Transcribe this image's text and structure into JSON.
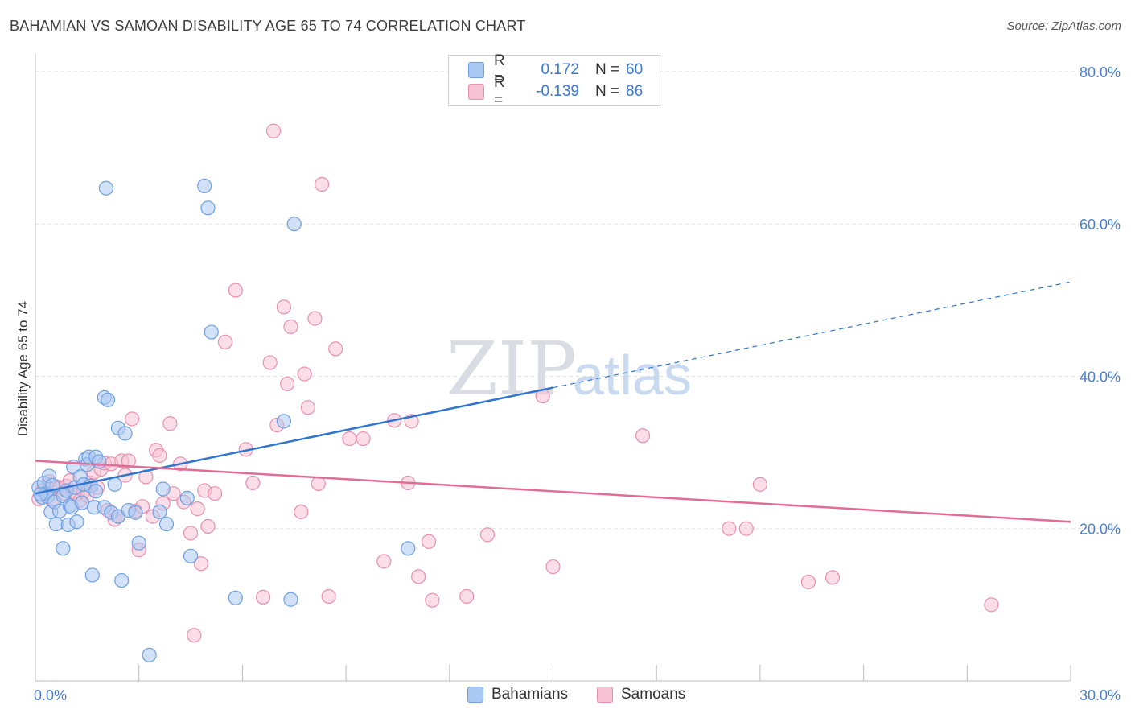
{
  "header": {
    "title": "BAHAMIAN VS SAMOAN DISABILITY AGE 65 TO 74 CORRELATION CHART",
    "source": "Source: ZipAtlas.com"
  },
  "legend": {
    "rows": [
      {
        "r_label": "R =",
        "r_value": "0.172",
        "n_label": "N =",
        "n_value": "60",
        "color": "#a9c8f2",
        "border": "#6f9fdf"
      },
      {
        "r_label": "R =",
        "r_value": "-0.139",
        "n_label": "N =",
        "n_value": "86",
        "color": "#f7c3d4",
        "border": "#e98fae"
      }
    ]
  },
  "bottom_legend": {
    "items": [
      {
        "label": "Bahamians",
        "color": "#a9c8f2",
        "border": "#6f9fdf"
      },
      {
        "label": "Samoans",
        "color": "#f7c3d4",
        "border": "#e98fae"
      }
    ]
  },
  "watermark": {
    "part1": "ZIP",
    "part2": "atlas"
  },
  "chart_data": {
    "type": "scatter",
    "title": "BAHAMIAN VS SAMOAN DISABILITY AGE 65 TO 74 CORRELATION CHART",
    "ylabel": "Disability Age 65 to 74",
    "xlabel": "",
    "xlim": [
      0,
      30
    ],
    "ylim": [
      0,
      82
    ],
    "x_ticks": [
      {
        "value": 0,
        "label": "0.0%"
      },
      {
        "value": 30,
        "label": "30.0%"
      }
    ],
    "y_ticks": [
      {
        "value": 20,
        "label": "20.0%"
      },
      {
        "value": 40,
        "label": "40.0%"
      },
      {
        "value": 60,
        "label": "60.0%"
      },
      {
        "value": 80,
        "label": "80.0%"
      }
    ],
    "grid": true,
    "colors": {
      "bahamians_fill": "#a9c8f2",
      "bahamians_stroke": "#6f9fdf",
      "samoans_fill": "#f7c3d4",
      "samoans_stroke": "#e98fae",
      "blue_line": "#2f74d0",
      "pink_line": "#e26c96"
    },
    "series": [
      {
        "name": "Bahamians",
        "points": [
          [
            0.1,
            25.4
          ],
          [
            0.2,
            24.1
          ],
          [
            0.25,
            26.0
          ],
          [
            0.3,
            24.6
          ],
          [
            0.35,
            24.2
          ],
          [
            0.4,
            26.9
          ],
          [
            0.45,
            22.2
          ],
          [
            0.5,
            25.7
          ],
          [
            0.55,
            23.5
          ],
          [
            0.6,
            20.6
          ],
          [
            0.7,
            22.3
          ],
          [
            0.8,
            24.3
          ],
          [
            0.8,
            17.4
          ],
          [
            0.9,
            25.0
          ],
          [
            0.95,
            20.5
          ],
          [
            1.0,
            23.0
          ],
          [
            1.05,
            22.8
          ],
          [
            1.1,
            28.1
          ],
          [
            1.15,
            25.4
          ],
          [
            1.2,
            20.9
          ],
          [
            1.3,
            26.8
          ],
          [
            1.35,
            23.4
          ],
          [
            1.4,
            25.8
          ],
          [
            1.45,
            29.1
          ],
          [
            1.5,
            28.4
          ],
          [
            1.55,
            29.4
          ],
          [
            1.6,
            25.6
          ],
          [
            1.7,
            22.8
          ],
          [
            1.65,
            13.9
          ],
          [
            1.75,
            29.4
          ],
          [
            1.75,
            24.9
          ],
          [
            1.85,
            28.8
          ],
          [
            2.0,
            22.8
          ],
          [
            2.05,
            64.7
          ],
          [
            2.0,
            37.2
          ],
          [
            2.1,
            36.9
          ],
          [
            2.2,
            22.1
          ],
          [
            2.3,
            25.8
          ],
          [
            2.4,
            21.6
          ],
          [
            2.4,
            33.2
          ],
          [
            2.5,
            13.2
          ],
          [
            2.6,
            32.5
          ],
          [
            2.7,
            22.4
          ],
          [
            2.9,
            22.1
          ],
          [
            3.0,
            18.1
          ],
          [
            3.3,
            3.4
          ],
          [
            3.6,
            22.2
          ],
          [
            3.7,
            25.2
          ],
          [
            3.8,
            20.6
          ],
          [
            4.4,
            24.0
          ],
          [
            4.5,
            16.4
          ],
          [
            4.9,
            65.0
          ],
          [
            5.0,
            62.1
          ],
          [
            5.1,
            45.8
          ],
          [
            5.8,
            10.9
          ],
          [
            7.2,
            34.1
          ],
          [
            7.4,
            10.7
          ],
          [
            7.5,
            60.0
          ],
          [
            10.8,
            17.4
          ],
          [
            0.15,
            24.5
          ]
        ]
      },
      {
        "name": "Samoans",
        "points": [
          [
            0.1,
            23.9
          ],
          [
            0.2,
            25.0
          ],
          [
            0.3,
            24.5
          ],
          [
            0.4,
            26.2
          ],
          [
            0.5,
            23.7
          ],
          [
            0.6,
            25.5
          ],
          [
            0.7,
            25.4
          ],
          [
            0.8,
            24.6
          ],
          [
            0.9,
            25.6
          ],
          [
            1.0,
            26.3
          ],
          [
            1.1,
            24.8
          ],
          [
            1.2,
            24.5
          ],
          [
            1.3,
            23.7
          ],
          [
            1.4,
            24.9
          ],
          [
            1.5,
            24.3
          ],
          [
            1.6,
            26.0
          ],
          [
            1.7,
            27.4
          ],
          [
            1.8,
            25.4
          ],
          [
            1.9,
            27.8
          ],
          [
            2.0,
            28.6
          ],
          [
            2.1,
            22.4
          ],
          [
            2.2,
            28.5
          ],
          [
            2.3,
            21.2
          ],
          [
            2.4,
            21.6
          ],
          [
            2.5,
            28.9
          ],
          [
            2.6,
            27.0
          ],
          [
            2.7,
            28.9
          ],
          [
            2.8,
            34.4
          ],
          [
            2.9,
            22.3
          ],
          [
            3.0,
            17.2
          ],
          [
            3.1,
            22.9
          ],
          [
            3.2,
            26.8
          ],
          [
            3.4,
            21.6
          ],
          [
            3.5,
            30.3
          ],
          [
            3.6,
            29.6
          ],
          [
            3.7,
            23.3
          ],
          [
            3.9,
            33.8
          ],
          [
            4.0,
            24.6
          ],
          [
            4.2,
            28.5
          ],
          [
            4.3,
            23.5
          ],
          [
            4.5,
            19.4
          ],
          [
            4.6,
            6.0
          ],
          [
            4.7,
            22.6
          ],
          [
            4.8,
            15.4
          ],
          [
            4.9,
            25.0
          ],
          [
            5.0,
            20.3
          ],
          [
            5.2,
            24.6
          ],
          [
            5.5,
            44.5
          ],
          [
            5.8,
            51.3
          ],
          [
            6.1,
            30.4
          ],
          [
            6.3,
            26.0
          ],
          [
            6.6,
            11.0
          ],
          [
            6.8,
            41.8
          ],
          [
            6.9,
            72.2
          ],
          [
            7.0,
            33.6
          ],
          [
            7.2,
            49.1
          ],
          [
            7.3,
            39.0
          ],
          [
            7.4,
            46.5
          ],
          [
            7.7,
            22.2
          ],
          [
            7.8,
            40.3
          ],
          [
            7.9,
            35.9
          ],
          [
            8.1,
            47.6
          ],
          [
            8.2,
            25.9
          ],
          [
            8.3,
            65.2
          ],
          [
            8.5,
            11.1
          ],
          [
            8.7,
            43.6
          ],
          [
            9.1,
            31.8
          ],
          [
            9.5,
            31.8
          ],
          [
            10.1,
            15.7
          ],
          [
            10.4,
            34.2
          ],
          [
            10.8,
            26.0
          ],
          [
            10.9,
            34.1
          ],
          [
            11.1,
            13.7
          ],
          [
            11.4,
            18.3
          ],
          [
            11.5,
            10.6
          ],
          [
            12.5,
            11.1
          ],
          [
            13.1,
            19.2
          ],
          [
            14.7,
            37.4
          ],
          [
            15.0,
            15.0
          ],
          [
            17.6,
            32.2
          ],
          [
            20.1,
            20.0
          ],
          [
            20.6,
            20.0
          ],
          [
            21.0,
            25.8
          ],
          [
            22.4,
            13.0
          ],
          [
            23.1,
            13.6
          ],
          [
            27.7,
            10.0
          ]
        ]
      }
    ],
    "trendlines": [
      {
        "series": "Bahamians",
        "x0": 0,
        "y0": 24.6,
        "x1": 15.0,
        "y1": 38.5,
        "dashed_to_x": 30,
        "dashed_to_y": 52.4
      },
      {
        "series": "Samoans",
        "x0": 0,
        "y0": 28.9,
        "x1": 30,
        "y1": 20.9
      }
    ]
  }
}
